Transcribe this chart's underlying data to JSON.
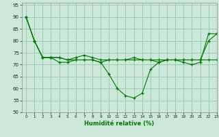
{
  "title": "",
  "xlabel": "Humidité relative (%)",
  "ylabel": "",
  "xlim": [
    -0.5,
    23
  ],
  "ylim": [
    50,
    96
  ],
  "yticks": [
    50,
    55,
    60,
    65,
    70,
    75,
    80,
    85,
    90,
    95
  ],
  "xticks": [
    0,
    1,
    2,
    3,
    4,
    5,
    6,
    7,
    8,
    9,
    10,
    11,
    12,
    13,
    14,
    15,
    16,
    17,
    18,
    19,
    20,
    21,
    22,
    23
  ],
  "background_color": "#cce8d8",
  "grid_color": "#99ccb0",
  "line_color": "#007700",
  "series": [
    {
      "x": [
        0,
        1,
        2,
        3,
        4,
        5,
        6,
        7,
        8,
        9,
        10,
        11,
        12,
        13,
        14,
        15,
        16,
        17,
        18,
        19,
        20,
        21,
        22,
        23
      ],
      "y": [
        90,
        80,
        73,
        73,
        73,
        72,
        72,
        72,
        72,
        71,
        66,
        60,
        57,
        56,
        58,
        68,
        71,
        72,
        72,
        71,
        70,
        71,
        83,
        83
      ]
    },
    {
      "x": [
        0,
        1,
        2,
        3,
        4,
        5,
        6,
        7,
        8,
        9,
        10,
        11,
        12,
        13,
        14,
        15,
        16,
        17,
        18,
        19,
        20,
        21,
        22,
        23
      ],
      "y": [
        90,
        80,
        73,
        73,
        73,
        72,
        73,
        74,
        73,
        72,
        72,
        72,
        72,
        73,
        72,
        72,
        72,
        72,
        72,
        72,
        72,
        72,
        72,
        72
      ]
    },
    {
      "x": [
        0,
        1,
        2,
        3,
        4,
        5,
        6,
        7,
        8,
        9,
        10,
        11,
        12,
        13,
        14,
        15,
        16,
        17,
        18,
        19,
        20,
        21,
        22,
        23
      ],
      "y": [
        90,
        80,
        73,
        73,
        71,
        71,
        72,
        72,
        72,
        71,
        72,
        72,
        72,
        72,
        72,
        72,
        71,
        72,
        72,
        72,
        72,
        72,
        80,
        83
      ]
    }
  ]
}
